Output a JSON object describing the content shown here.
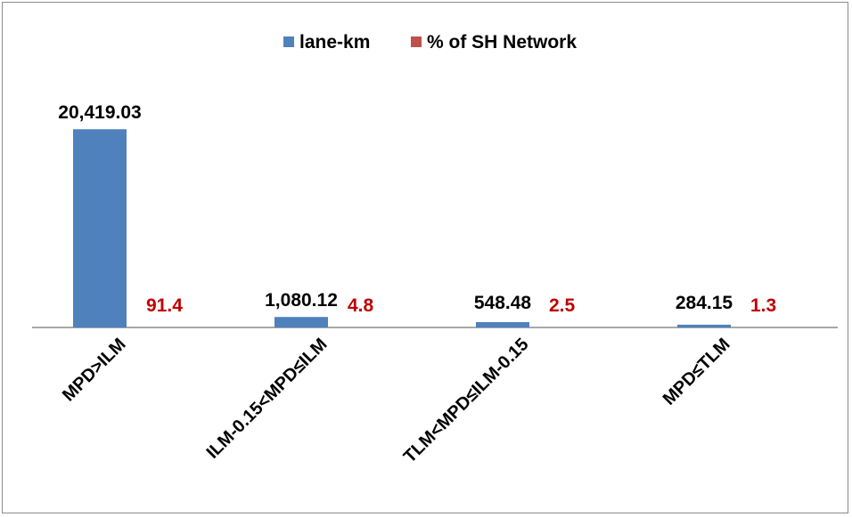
{
  "chart_data": {
    "type": "bar",
    "categories": [
      "MPD>ILM",
      "ILM-0.15<MPD≤ILM",
      "TLM<MPD≤ILM-0.15",
      "MPD≤TLM"
    ],
    "series": [
      {
        "name": "lane-km",
        "values": [
          20419.03,
          1080.12,
          548.48,
          284.15
        ],
        "labels": [
          "20,419.03",
          "1,080.12",
          "548.48",
          "284.15"
        ],
        "color": "#4f81bd",
        "label_color": "#000000"
      },
      {
        "name": "% of SH Network",
        "values": [
          91.4,
          4.8,
          2.5,
          1.3
        ],
        "labels": [
          "91.4",
          "4.8",
          "2.5",
          "1.3"
        ],
        "color": "#c0504d",
        "label_color": "#c00000"
      }
    ],
    "ylim": [
      0,
      22000
    ],
    "grid": false,
    "legend_position": "top-center",
    "title": "",
    "xlabel": "",
    "ylabel": ""
  }
}
